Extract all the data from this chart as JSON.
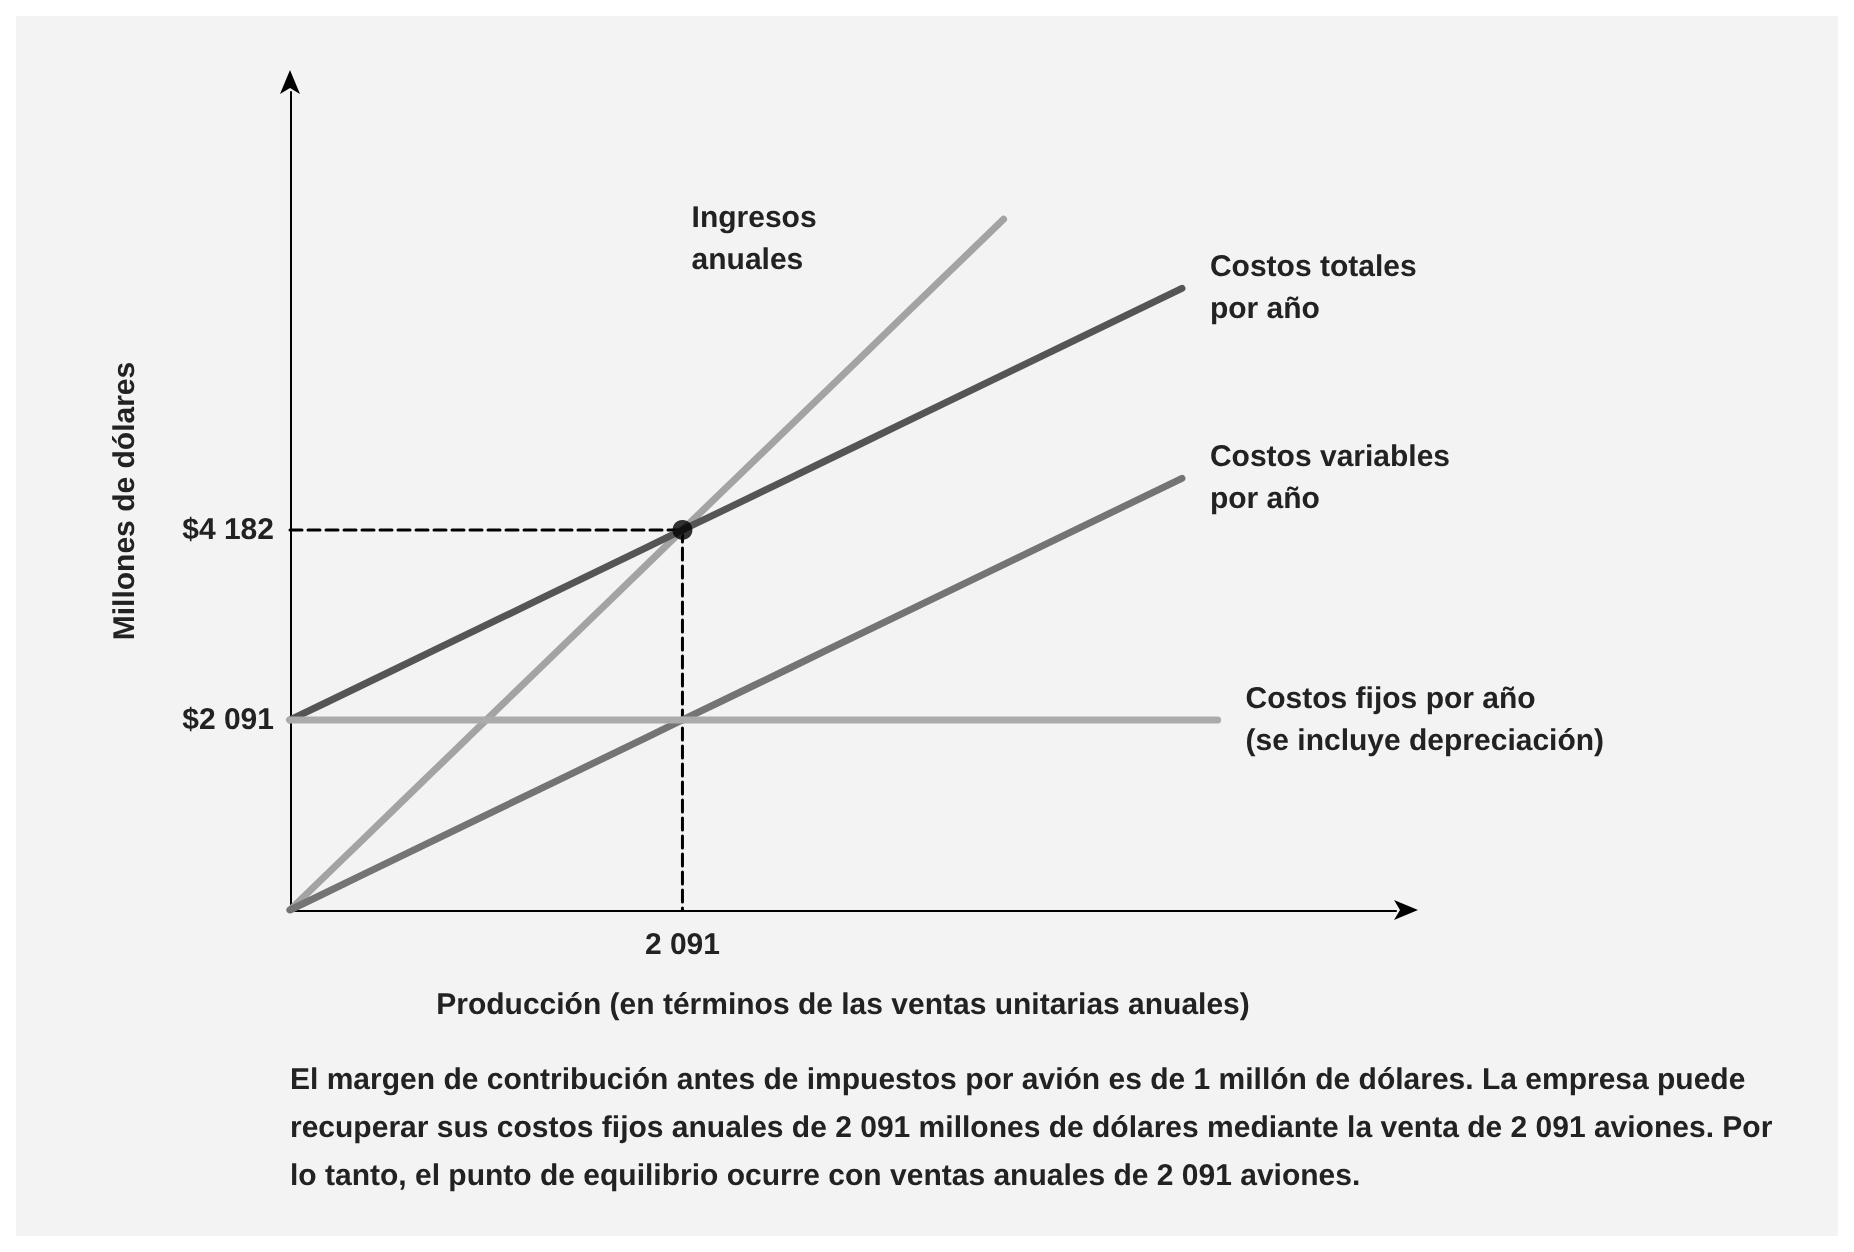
{
  "chart_data": {
    "type": "line",
    "xlabel": "Producción (en términos de las ventas unitarias anuales)",
    "ylabel": "Millones de dólares",
    "categories": [
      null,
      null,
      null,
      null,
      null,
      null,
      null,
      null,
      null,
      null,
      null,
      "2 091",
      null,
      null,
      null,
      null,
      null,
      null,
      null,
      null,
      null,
      null,
      null,
      null,
      null,
      null,
      null,
      null,
      null,
      null,
      null,
      null
    ],
    "ylim": [
      0,
      9000
    ],
    "yticks": [
      {
        "value": 2091,
        "label": "$2 091"
      },
      {
        "value": 4182,
        "label": "$4 182"
      }
    ],
    "marker": "none",
    "line_style": "solid",
    "series": [
      {
        "name": "Ingresos\nanuales",
        "color": "#a3a3a3",
        "values": [
          0,
          380,
          760,
          1140,
          1520,
          1900,
          2280,
          2660,
          3040,
          3420,
          3800,
          4182,
          4560,
          4940,
          5320,
          5700,
          6080,
          6460,
          6840,
          7220,
          7600,
          null,
          null,
          null,
          null,
          null,
          null,
          null,
          null,
          null,
          null,
          null
        ]
      },
      {
        "name": "Costos totales\npor año",
        "color": "#555555",
        "values": [
          2091,
          2280,
          2470,
          2660,
          2850,
          3040,
          3230,
          3420,
          3610,
          3800,
          3990,
          4182,
          4370,
          4560,
          4750,
          4940,
          5130,
          5320,
          5510,
          5700,
          5890,
          6080,
          6270,
          6460,
          6650,
          6840,
          null,
          null,
          null,
          null,
          null,
          null
        ]
      },
      {
        "name": "Costos variables\npor año",
        "color": "#747474",
        "values": [
          0,
          190,
          380,
          570,
          760,
          950,
          1140,
          1330,
          1520,
          1710,
          1900,
          2091,
          2280,
          2470,
          2660,
          2850,
          3040,
          3230,
          3420,
          3610,
          3800,
          3990,
          4180,
          4370,
          4560,
          4750,
          null,
          null,
          null,
          null,
          null,
          null
        ]
      },
      {
        "name": "Costos fijos por año\n(se incluye depreciación)",
        "color": "#ababab",
        "values": [
          2091,
          2091,
          2091,
          2091,
          2091,
          2091,
          2091,
          2091,
          2091,
          2091,
          2091,
          2091,
          2091,
          2091,
          2091,
          2091,
          2091,
          2091,
          2091,
          2091,
          2091,
          2091,
          2091,
          2091,
          2091,
          2091,
          2091,
          null,
          null,
          null,
          null,
          null
        ]
      },
      {
        "color": "#000000",
        "line_style": "dashed",
        "values": [
          4182,
          4182,
          4182,
          4182,
          4182,
          4182,
          4182,
          4182,
          4182,
          4182,
          4182,
          4182,
          null,
          null,
          null,
          null,
          null,
          null,
          null,
          null,
          null,
          null,
          null,
          null,
          null,
          null,
          null,
          null,
          null,
          null,
          null,
          null
        ]
      },
      {
        "color": "#000000",
        "line_style": "dashed",
        "x": [
          "2 091",
          "2 091"
        ],
        "values": [
          4182,
          0
        ]
      },
      {
        "type": "scatter",
        "marker": "circle",
        "color": "#000000",
        "x": [
          "2 091"
        ],
        "values": [
          4182
        ]
      }
    ],
    "annotations": [
      "El margen de contribución antes de impuestos por avión es de 1 millón de dólares. La empresa puede recuperar sus costos fijos anuales de 2 091 millones de dólares mediante la venta de 2 091 aviones. Por lo tanto, el punto de equilibrio ocurre con ventas anuales de 2 091 aviones."
    ]
  }
}
